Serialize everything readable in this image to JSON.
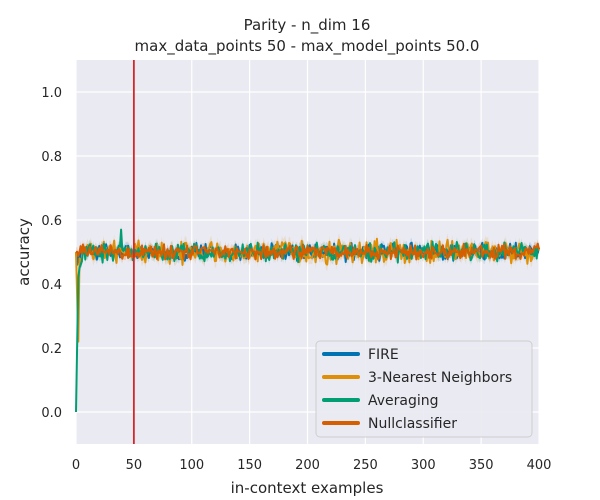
{
  "chart_data": {
    "type": "line",
    "title": "Parity - n_dim 16",
    "subtitle": "max_data_points 50 - max_model_points 50.0",
    "xlabel": "in-context examples",
    "ylabel": "accuracy",
    "xlim": [
      0,
      400
    ],
    "ylim": [
      -0.1,
      1.1
    ],
    "xticks": [
      0,
      50,
      100,
      150,
      200,
      250,
      300,
      350,
      400
    ],
    "yticks": [
      0.0,
      0.2,
      0.4,
      0.6,
      0.8,
      1.0
    ],
    "xtick_labels": [
      "0",
      "50",
      "100",
      "150",
      "200",
      "250",
      "300",
      "350",
      "400"
    ],
    "ytick_labels": [
      "0.0",
      "0.2",
      "0.4",
      "0.6",
      "0.8",
      "1.0"
    ],
    "grid": true,
    "legend_position": "lower-right",
    "vline": {
      "x": 50,
      "color": "#d62728"
    },
    "series": [
      {
        "name": "FIRE",
        "color": "#0173b2",
        "start": [
          [
            0,
            0.5
          ],
          [
            1,
            0.46
          ],
          [
            2,
            0.49
          ]
        ],
        "mean": 0.5,
        "amp": 0.025,
        "band": 0.015
      },
      {
        "name": "3-Nearest Neighbors",
        "color": "#de8f05",
        "start": [
          [
            0,
            0.5
          ],
          [
            2,
            0.22
          ],
          [
            3,
            0.48
          ],
          [
            5,
            0.47
          ]
        ],
        "mean": 0.5,
        "amp": 0.03,
        "band": 0.02
      },
      {
        "name": "Averaging",
        "color": "#029e73",
        "start": [
          [
            0,
            0.0
          ],
          [
            1,
            0.22
          ],
          [
            2,
            0.42
          ],
          [
            3,
            0.45
          ],
          [
            5,
            0.47
          ]
        ],
        "mean": 0.5,
        "amp": 0.025,
        "band": 0.015,
        "spikes": [
          [
            39,
            0.57
          ]
        ]
      },
      {
        "name": "Nullclassifier",
        "color": "#d55e00",
        "start": [
          [
            0,
            0.5
          ]
        ],
        "mean": 0.5,
        "amp": 0.02,
        "band": 0.015
      }
    ]
  }
}
